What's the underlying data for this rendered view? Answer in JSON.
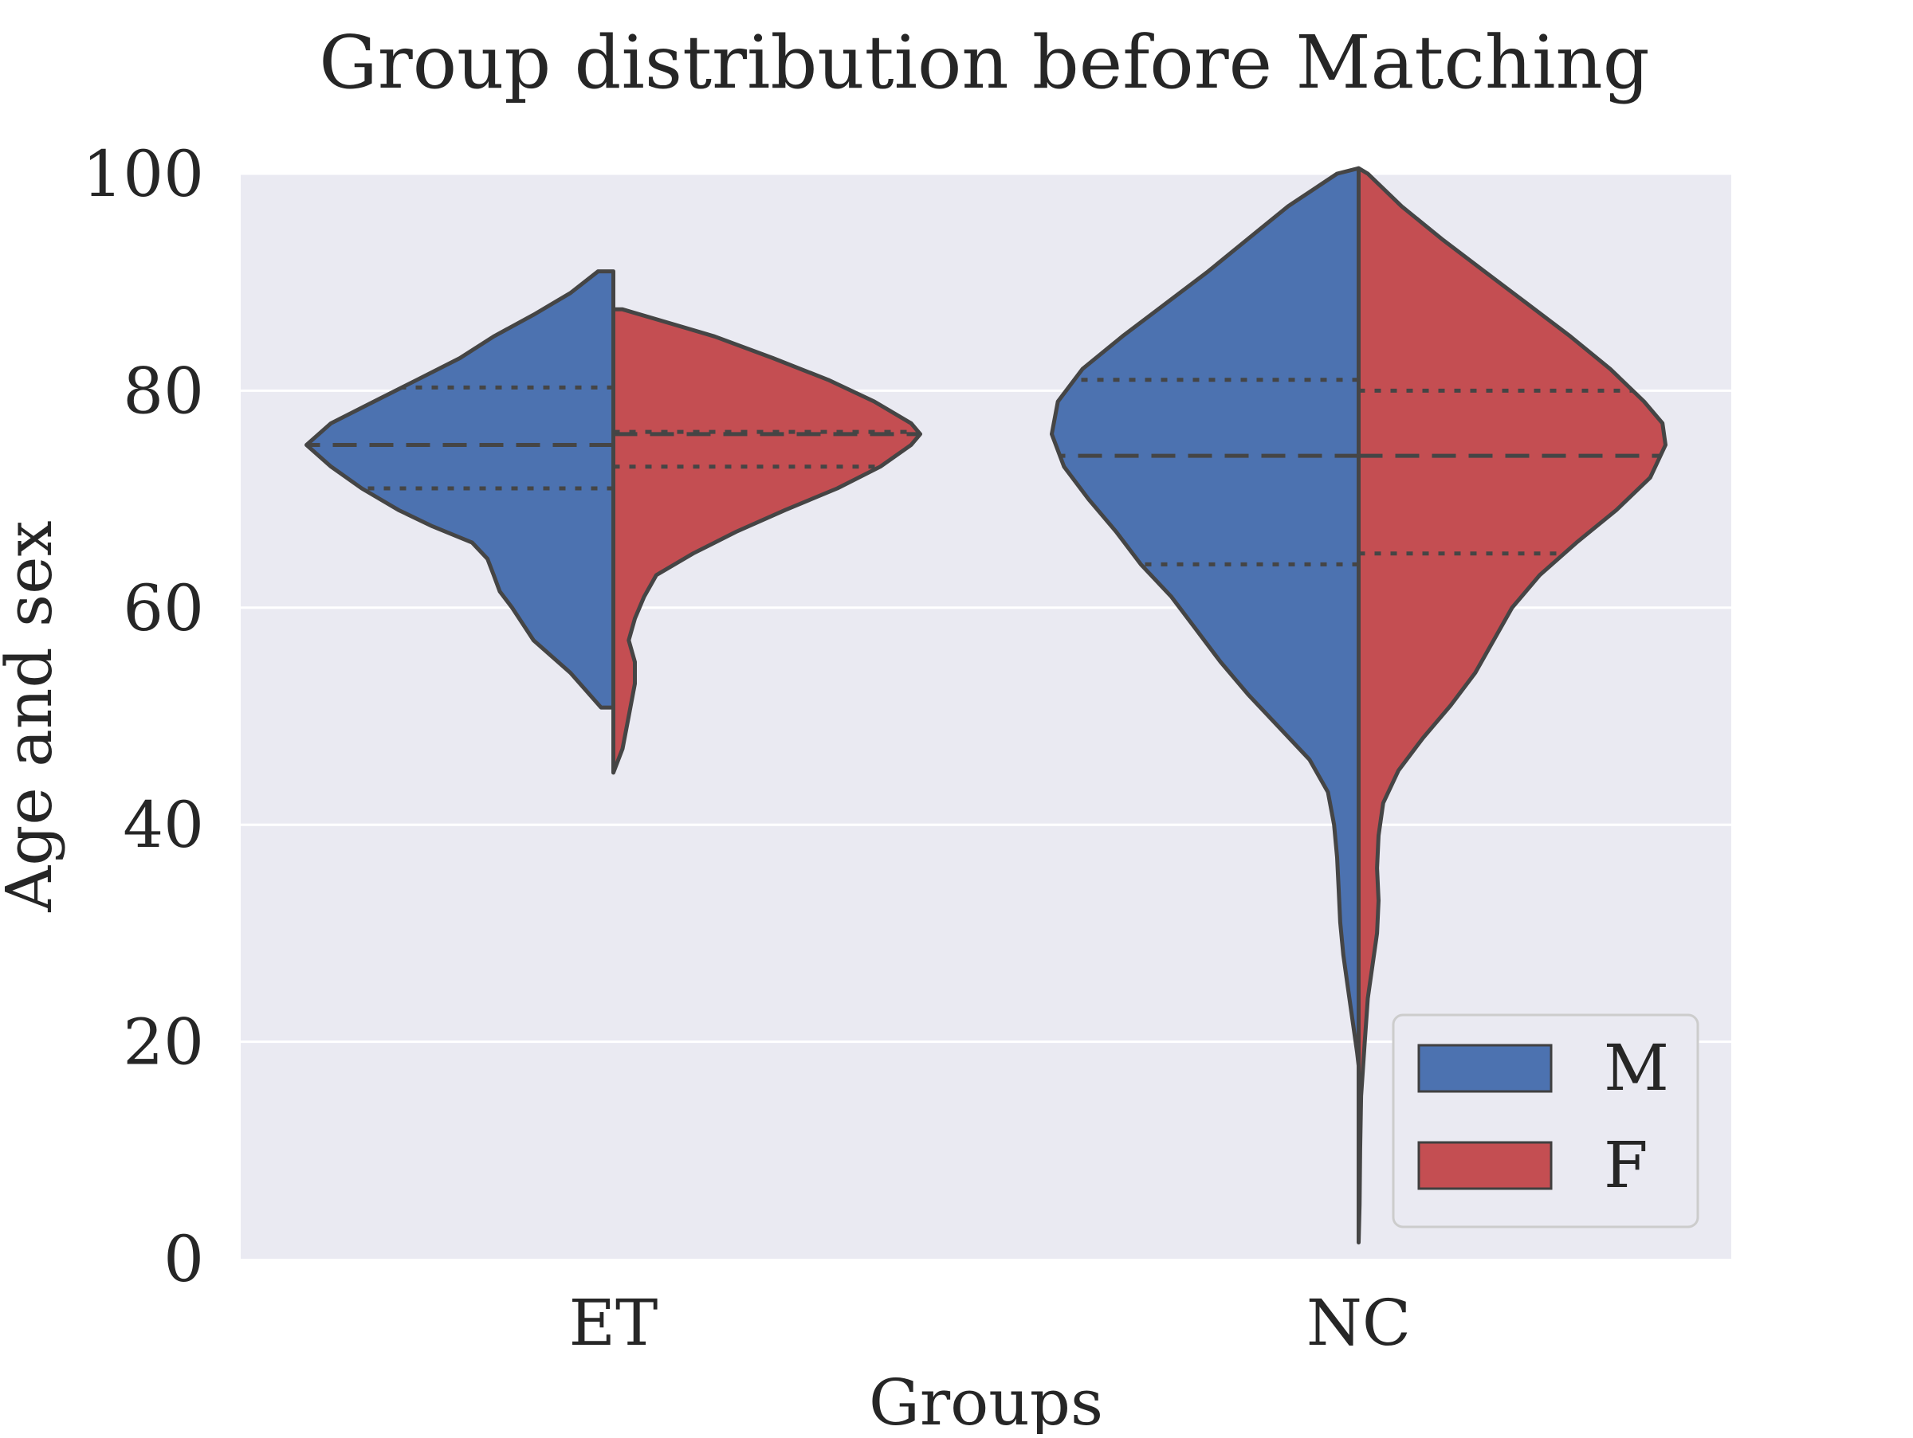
{
  "chart_data": {
    "type": "violin",
    "title": "Group distribution before Matching",
    "xlabel": "Groups",
    "ylabel": "Age and sex",
    "ylim": [
      0,
      100
    ],
    "yticks": [
      0,
      20,
      40,
      60,
      80,
      100
    ],
    "categories": [
      "ET",
      "NC"
    ],
    "grid": "horizontal",
    "legend_position": "lower-right",
    "series": [
      {
        "name": "M",
        "color": "#4C72B0",
        "groups": [
          {
            "category": "ET",
            "min": 50.8,
            "max": 91,
            "q1": 71,
            "median": 75,
            "q3": 80.3,
            "profile": [
              [
                50.8,
                0.04
              ],
              [
                54,
                0.14
              ],
              [
                57,
                0.26
              ],
              [
                60,
                0.33
              ],
              [
                61.5,
                0.37
              ],
              [
                63,
                0.39
              ],
              [
                64.5,
                0.41
              ],
              [
                66,
                0.46
              ],
              [
                67.5,
                0.59
              ],
              [
                69,
                0.7
              ],
              [
                71,
                0.82
              ],
              [
                73,
                0.92
              ],
              [
                75,
                1.0
              ],
              [
                77,
                0.92
              ],
              [
                79,
                0.78
              ],
              [
                81,
                0.64
              ],
              [
                83,
                0.5
              ],
              [
                85,
                0.39
              ],
              [
                87,
                0.26
              ],
              [
                89,
                0.14
              ],
              [
                91,
                0.05
              ]
            ]
          },
          {
            "category": "NC",
            "min": 17.8,
            "max": 100.5,
            "q1": 64,
            "median": 74,
            "q3": 81,
            "profile": [
              [
                17.8,
                0.0
              ],
              [
                19,
                0.005
              ],
              [
                22,
                0.02
              ],
              [
                25,
                0.035
              ],
              [
                28,
                0.05
              ],
              [
                31,
                0.06
              ],
              [
                34,
                0.065
              ],
              [
                37,
                0.07
              ],
              [
                40,
                0.08
              ],
              [
                43,
                0.1
              ],
              [
                46,
                0.16
              ],
              [
                49,
                0.26
              ],
              [
                52,
                0.36
              ],
              [
                55,
                0.45
              ],
              [
                58,
                0.53
              ],
              [
                61,
                0.61
              ],
              [
                64,
                0.71
              ],
              [
                67,
                0.79
              ],
              [
                70,
                0.88
              ],
              [
                73,
                0.96
              ],
              [
                76,
                1.0
              ],
              [
                79,
                0.98
              ],
              [
                82,
                0.9
              ],
              [
                85,
                0.77
              ],
              [
                88,
                0.63
              ],
              [
                91,
                0.49
              ],
              [
                94,
                0.36
              ],
              [
                97,
                0.23
              ],
              [
                100,
                0.07
              ],
              [
                100.5,
                0.0
              ]
            ]
          }
        ]
      },
      {
        "name": "F",
        "color": "#C44E52",
        "groups": [
          {
            "category": "ET",
            "min": 44.8,
            "max": 87.5,
            "q1": 73,
            "median": 76,
            "q3": 76.2,
            "profile": [
              [
                44.8,
                0.0
              ],
              [
                47,
                0.03
              ],
              [
                50,
                0.05
              ],
              [
                53,
                0.07
              ],
              [
                55,
                0.07
              ],
              [
                57,
                0.05
              ],
              [
                59,
                0.07
              ],
              [
                61,
                0.1
              ],
              [
                63,
                0.14
              ],
              [
                65,
                0.26
              ],
              [
                67,
                0.4
              ],
              [
                69,
                0.56
              ],
              [
                71,
                0.73
              ],
              [
                73,
                0.87
              ],
              [
                75,
                0.97
              ],
              [
                76,
                1.0
              ],
              [
                77,
                0.97
              ],
              [
                79,
                0.85
              ],
              [
                81,
                0.7
              ],
              [
                83,
                0.52
              ],
              [
                85,
                0.33
              ],
              [
                86.5,
                0.15
              ],
              [
                87.5,
                0.03
              ]
            ]
          },
          {
            "category": "NC",
            "min": 1.5,
            "max": 100.5,
            "q1": 65,
            "median": 74,
            "q3": 80,
            "profile": [
              [
                1.5,
                0.0
              ],
              [
                5,
                0.003
              ],
              [
                10,
                0.005
              ],
              [
                15,
                0.008
              ],
              [
                20,
                0.02
              ],
              [
                24,
                0.03
              ],
              [
                27,
                0.045
              ],
              [
                30,
                0.06
              ],
              [
                33,
                0.065
              ],
              [
                36,
                0.06
              ],
              [
                39,
                0.065
              ],
              [
                42,
                0.08
              ],
              [
                45,
                0.13
              ],
              [
                48,
                0.21
              ],
              [
                51,
                0.3
              ],
              [
                54,
                0.38
              ],
              [
                57,
                0.44
              ],
              [
                60,
                0.5
              ],
              [
                63,
                0.59
              ],
              [
                66,
                0.71
              ],
              [
                69,
                0.84
              ],
              [
                72,
                0.95
              ],
              [
                75,
                1.0
              ],
              [
                77,
                0.99
              ],
              [
                79,
                0.93
              ],
              [
                82,
                0.82
              ],
              [
                85,
                0.69
              ],
              [
                88,
                0.55
              ],
              [
                91,
                0.41
              ],
              [
                94,
                0.27
              ],
              [
                97,
                0.14
              ],
              [
                100,
                0.03
              ],
              [
                100.5,
                0.0
              ]
            ]
          }
        ]
      }
    ]
  }
}
